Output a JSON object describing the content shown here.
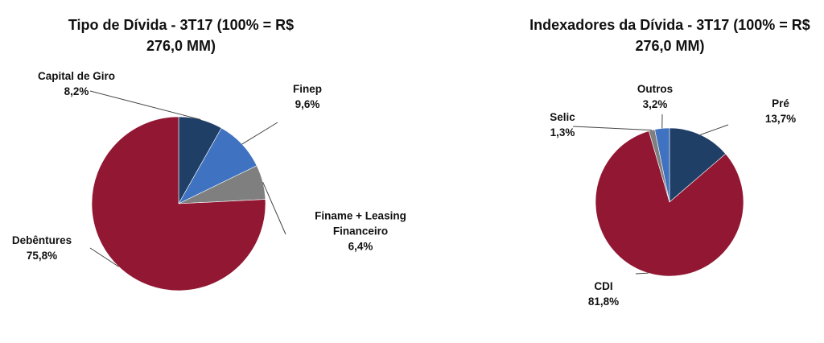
{
  "chart_data": [
    {
      "type": "pie",
      "title": "Tipo de Dívida - 3T17 (100% = R$ 276,0 MM)",
      "categories": [
        "Capital de Giro",
        "Finep",
        "Finame + Leasing Financeiro",
        "Debêntures"
      ],
      "values": [
        8.2,
        9.6,
        6.4,
        75.8
      ],
      "value_labels": [
        "8,2%",
        "9,6%",
        "6,4%",
        "75,8%"
      ],
      "colors": [
        "#1f3f66",
        "#3f72c0",
        "#7f7f7f",
        "#921732"
      ]
    },
    {
      "type": "pie",
      "title": "Indexadores da Dívida - 3T17 (100% = R$ 276,0 MM)",
      "categories": [
        "Pré",
        "CDI",
        "Selic",
        "Outros"
      ],
      "values": [
        13.7,
        81.8,
        1.3,
        3.2
      ],
      "value_labels": [
        "13,7%",
        "81,8%",
        "1,3%",
        "3,2%"
      ],
      "colors": [
        "#1f3f66",
        "#921732",
        "#7f7f7f",
        "#3f72c0"
      ]
    }
  ]
}
